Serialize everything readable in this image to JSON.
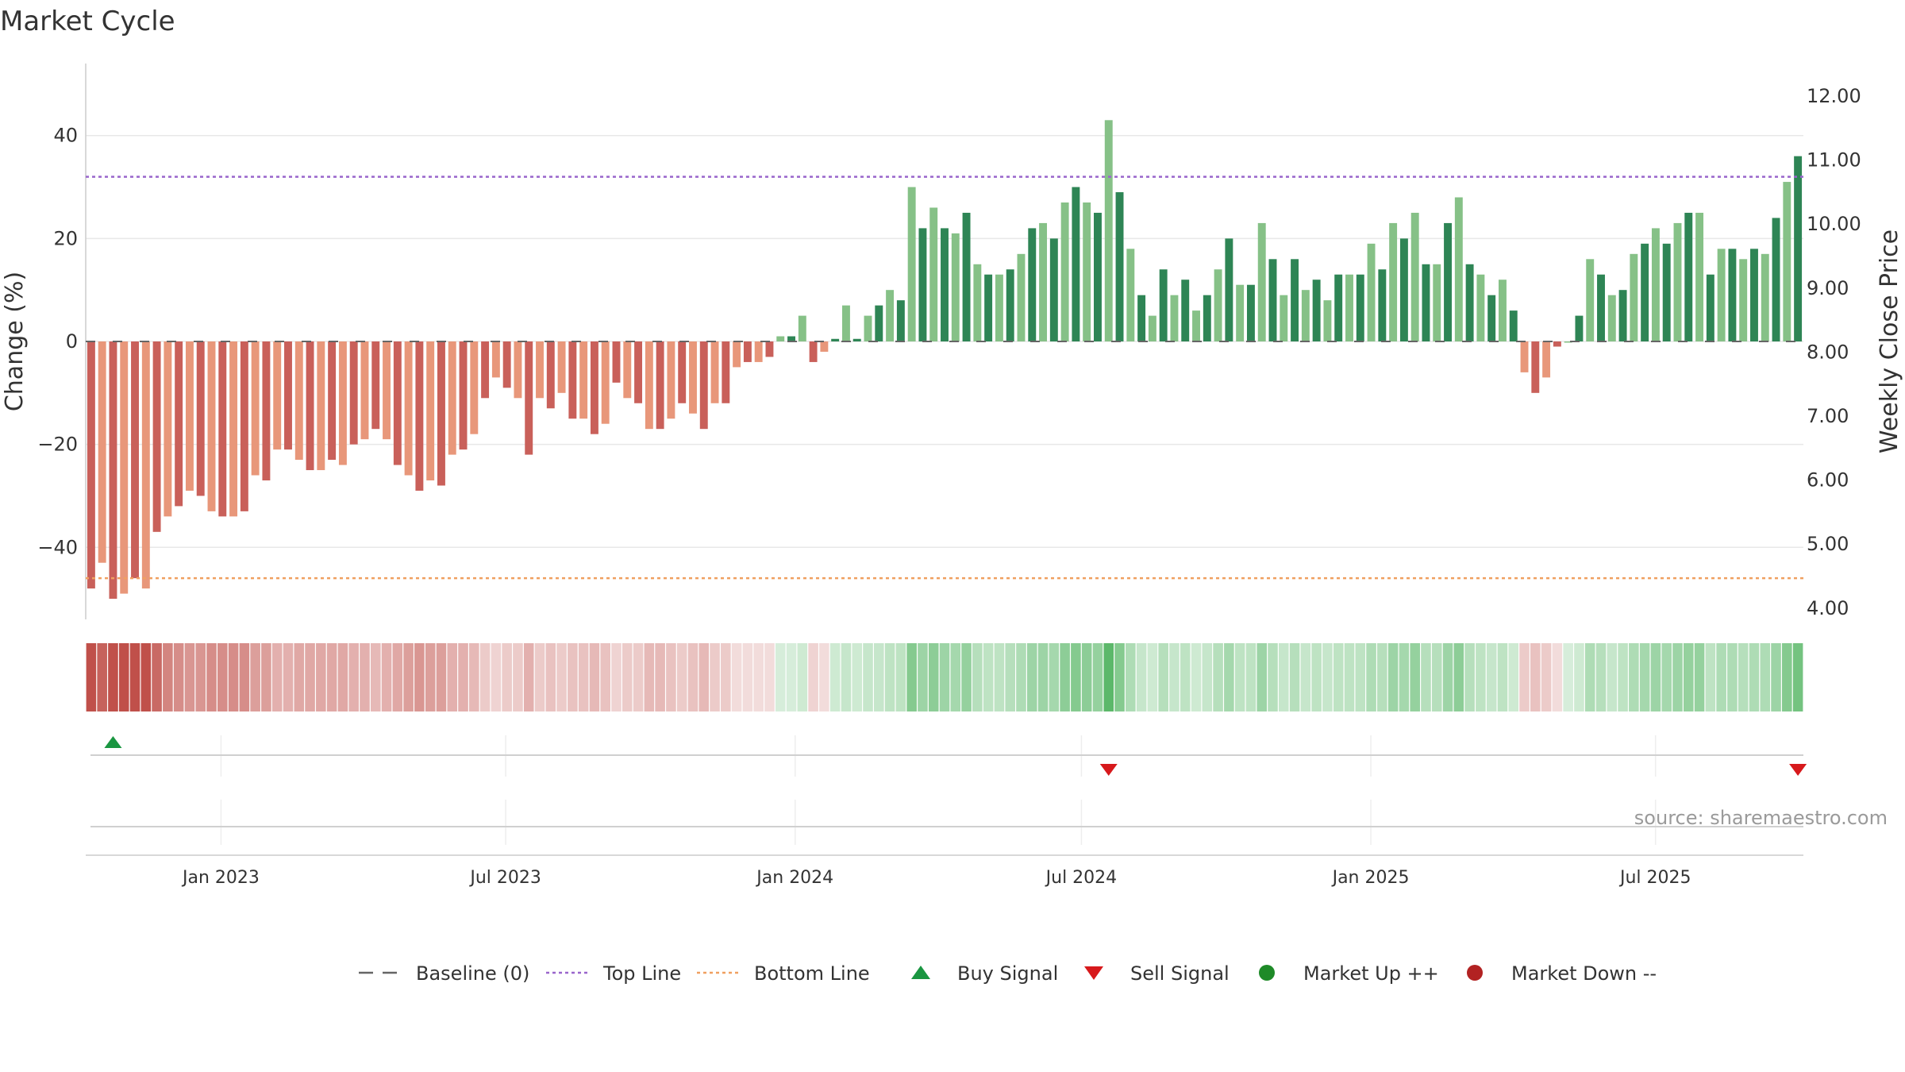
{
  "title": "Market Cycle",
  "source": "source: sharemaestro.com",
  "colors": {
    "neg_dark": "#c9605a",
    "neg_light": "#e8977a",
    "pos_dark": "#2e8555",
    "pos_light": "#86c187",
    "top_line": "#9966cc",
    "bottom_line": "#f0a060",
    "baseline": "#666666",
    "buy": "#1a9641",
    "sell": "#d7191c",
    "market_up": "#1e8a28",
    "market_down": "#b22222"
  },
  "chart_data": {
    "type": "bar",
    "ylabel": "Change (%)",
    "y2label": "Weekly Close Price",
    "ylim": [
      -54,
      54
    ],
    "y_ticks": [
      40,
      20,
      0,
      -20,
      -40
    ],
    "y_tick_labels": [
      "40",
      "20",
      "0",
      "−20",
      "−40"
    ],
    "y2_ticks": [
      "12.00",
      "11.00",
      "10.00",
      "9.00",
      "8.00",
      "7.00",
      "6.00",
      "5.00",
      "4.00"
    ],
    "x_ticks": [
      "Jan 2023",
      "Jul 2023",
      "Jan 2024",
      "Jul 2024",
      "Jan 2025",
      "Jul 2025"
    ],
    "x_tick_dates": [
      "2023-01-01",
      "2023-07-01",
      "2024-01-01",
      "2024-07-01",
      "2025-01-01",
      "2025-07-01"
    ],
    "date_range": [
      "2022-10-07",
      "2025-10-03"
    ],
    "top_line": 32,
    "bottom_line": -46,
    "changes": [
      -48,
      -43,
      -50,
      -49,
      -46,
      -48,
      -37,
      -34,
      -32,
      -29,
      -30,
      -33,
      -34,
      -34,
      -33,
      -26,
      -27,
      -21,
      -21,
      -23,
      -25,
      -25,
      -23,
      -24,
      -20,
      -19,
      -17,
      -19,
      -24,
      -26,
      -29,
      -27,
      -28,
      -22,
      -21,
      -18,
      -11,
      -7,
      -9,
      -11,
      -22,
      -11,
      -13,
      -10,
      -15,
      -15,
      -18,
      -16,
      -8,
      -11,
      -12,
      -17,
      -17,
      -15,
      -12,
      -14,
      -17,
      -12,
      -12,
      -5,
      -4,
      -4,
      -3,
      1,
      1,
      5,
      -4,
      -2,
      0.5,
      7,
      0.5,
      5,
      7,
      10,
      8,
      30,
      22,
      26,
      22,
      21,
      25,
      15,
      13,
      13,
      14,
      17,
      22,
      23,
      20,
      27,
      30,
      27,
      25,
      43,
      29,
      18,
      9,
      5,
      14,
      9,
      12,
      6,
      9,
      14,
      20,
      11,
      11,
      23,
      16,
      9,
      16,
      10,
      12,
      8,
      13,
      13,
      13,
      19,
      14,
      23,
      20,
      25,
      15,
      15,
      23,
      28,
      15,
      13,
      9,
      12,
      6,
      -6,
      -10,
      -7,
      -1,
      0,
      5,
      16,
      13,
      9,
      10,
      17,
      19,
      22,
      19,
      23,
      25,
      25,
      13,
      18,
      18,
      16,
      18,
      17,
      24,
      31,
      36
    ],
    "shades": [
      1,
      0.9,
      1,
      1,
      1,
      1,
      0.85,
      0.7,
      0.65,
      0.6,
      0.6,
      0.65,
      0.65,
      0.65,
      0.65,
      0.55,
      0.55,
      0.45,
      0.45,
      0.5,
      0.5,
      0.5,
      0.5,
      0.5,
      0.45,
      0.45,
      0.4,
      0.45,
      0.5,
      0.55,
      0.6,
      0.55,
      0.55,
      0.45,
      0.45,
      0.4,
      0.3,
      0.25,
      0.3,
      0.3,
      0.45,
      0.3,
      0.35,
      0.3,
      0.35,
      0.35,
      0.4,
      0.35,
      0.25,
      0.3,
      0.3,
      0.4,
      0.4,
      0.35,
      0.3,
      0.35,
      0.4,
      0.3,
      0.3,
      0.2,
      0.2,
      0.2,
      0.2,
      0.25,
      0.25,
      0.3,
      0.25,
      0.2,
      0.3,
      0.35,
      0.3,
      0.35,
      0.35,
      0.4,
      0.4,
      0.75,
      0.6,
      0.7,
      0.6,
      0.55,
      0.65,
      0.45,
      0.4,
      0.4,
      0.45,
      0.5,
      0.6,
      0.6,
      0.55,
      0.7,
      0.75,
      0.7,
      0.65,
      1,
      0.75,
      0.5,
      0.35,
      0.3,
      0.45,
      0.35,
      0.4,
      0.3,
      0.35,
      0.45,
      0.55,
      0.4,
      0.4,
      0.6,
      0.45,
      0.35,
      0.45,
      0.35,
      0.4,
      0.35,
      0.4,
      0.4,
      0.4,
      0.5,
      0.45,
      0.6,
      0.55,
      0.65,
      0.45,
      0.45,
      0.6,
      0.7,
      0.45,
      0.4,
      0.35,
      0.4,
      0.3,
      0.3,
      0.35,
      0.3,
      0.2,
      0.25,
      0.3,
      0.5,
      0.45,
      0.35,
      0.4,
      0.5,
      0.55,
      0.6,
      0.55,
      0.6,
      0.65,
      0.65,
      0.4,
      0.5,
      0.5,
      0.45,
      0.5,
      0.5,
      0.6,
      0.75,
      0.85
    ],
    "buy_signals": [
      2
    ],
    "sell_signals": [
      93,
      156
    ]
  },
  "legend": [
    {
      "label": "Baseline (0)",
      "symbol": "dash",
      "color": "#666666"
    },
    {
      "label": "Top Line",
      "symbol": "dot-line",
      "color": "#9966cc"
    },
    {
      "label": "Bottom Line",
      "symbol": "dot-line",
      "color": "#f0a060"
    },
    {
      "label": "Buy Signal",
      "symbol": "tri-up",
      "color": "#1a9641"
    },
    {
      "label": "Sell Signal",
      "symbol": "tri-down",
      "color": "#d7191c"
    },
    {
      "label": "Market Up ++",
      "symbol": "circle",
      "color": "#1e8a28"
    },
    {
      "label": "Market Down --",
      "symbol": "circle",
      "color": "#b22222"
    }
  ]
}
